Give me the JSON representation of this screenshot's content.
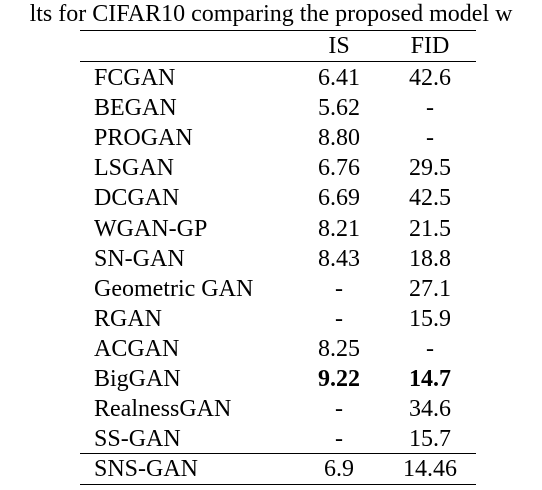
{
  "caption": "lts for CIFAR10 comparing the proposed model w",
  "table": {
    "headers": [
      "",
      "IS",
      "FID"
    ],
    "rows": [
      {
        "name": "FCGAN",
        "is": "6.41",
        "fid": "42.6"
      },
      {
        "name": "BEGAN",
        "is": "5.62",
        "fid": "-"
      },
      {
        "name": "PROGAN",
        "is": "8.80",
        "fid": "-"
      },
      {
        "name": "LSGAN",
        "is": "6.76",
        "fid": "29.5"
      },
      {
        "name": "DCGAN",
        "is": "6.69",
        "fid": "42.5"
      },
      {
        "name": "WGAN-GP",
        "is": "8.21",
        "fid": "21.5"
      },
      {
        "name": "SN-GAN",
        "is": "8.43",
        "fid": "18.8"
      },
      {
        "name": "Geometric GAN",
        "is": "-",
        "fid": "27.1"
      },
      {
        "name": "RGAN",
        "is": "-",
        "fid": "15.9"
      },
      {
        "name": "ACGAN",
        "is": "8.25",
        "fid": "-"
      },
      {
        "name": "BigGAN",
        "is": "9.22",
        "fid": "14.7",
        "bold_values": true
      },
      {
        "name": "RealnessGAN",
        "is": "-",
        "fid": "34.6"
      },
      {
        "name": "SS-GAN",
        "is": "-",
        "fid": "15.7"
      }
    ],
    "final_row": {
      "name": "SNS-GAN",
      "is": "6.9",
      "fid": "14.46"
    }
  }
}
